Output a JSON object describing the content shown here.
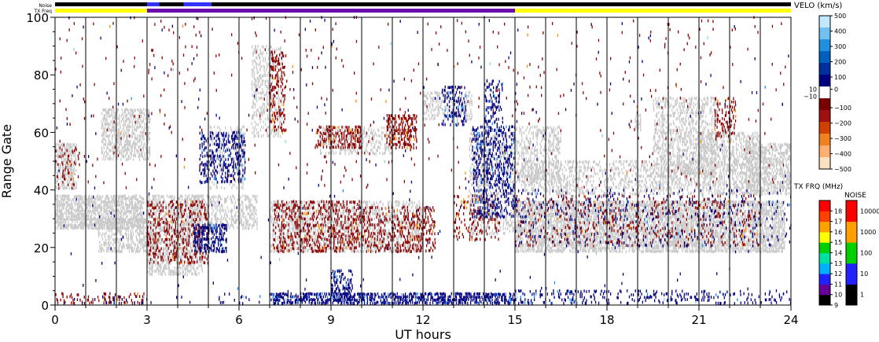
{
  "chart_data": {
    "type": "heatmap",
    "title": "",
    "xlabel": "UT hours",
    "ylabel": "Range Gate",
    "xlim": [
      0,
      24
    ],
    "ylim": [
      0,
      100
    ],
    "x_ticks": [
      0,
      3,
      6,
      9,
      12,
      15,
      18,
      21,
      24
    ],
    "y_ticks": [
      0,
      20,
      40,
      60,
      80,
      100
    ],
    "grid": "vertical lines every hour",
    "top_bars": {
      "noise_label": "Noise",
      "txfreq_label": "TX Freq",
      "noise_segments": [
        {
          "x0": 0,
          "x1": 3.0,
          "color": "#000000"
        },
        {
          "x0": 3.0,
          "x1": 3.4,
          "color": "#3333ff"
        },
        {
          "x0": 3.4,
          "x1": 4.2,
          "color": "#000000"
        },
        {
          "x0": 4.2,
          "x1": 5.1,
          "color": "#3333ff"
        },
        {
          "x0": 5.1,
          "x1": 24.0,
          "color": "#000000"
        }
      ],
      "txfreq_segments": [
        {
          "x0": 0,
          "x1": 3.0,
          "color": "#ffff00"
        },
        {
          "x0": 3.0,
          "x1": 15.0,
          "color": "#6a0dad"
        },
        {
          "x0": 15.0,
          "x1": 24.0,
          "color": "#ffff00"
        }
      ]
    },
    "velocity_colorbar": {
      "label": "VELO (km/s)",
      "ticks_positive": [
        "500",
        "400",
        "300",
        "200",
        "100",
        "0"
      ],
      "ticks_negative": [
        "−100",
        "−200",
        "−300",
        "−400",
        "−500"
      ],
      "zero_labels": [
        "10",
        "−10"
      ],
      "colors": [
        "#ffe0c0",
        "#ffb070",
        "#f08020",
        "#d04000",
        "#a01010",
        "#7a0000",
        "#ffffff",
        "#000080",
        "#0030a0",
        "#0060c0",
        "#2090e0",
        "#70c0f0",
        "#c0e8ff"
      ],
      "vmin": -500,
      "vmax": 500
    },
    "txfreq_colorbar": {
      "label": "TX FRQ (MHz)",
      "ticks": [
        "9",
        "10",
        "11",
        "12",
        "13",
        "14",
        "15",
        "16",
        "17",
        "18"
      ],
      "colors": [
        "#000000",
        "#660099",
        "#2222ff",
        "#00b0ff",
        "#00e0a0",
        "#00d000",
        "#ffff00",
        "#ffa000",
        "#ff4000",
        "#ff0000"
      ]
    },
    "noise_colorbar": {
      "label": "NOISE",
      "ticks": [
        "1",
        "10",
        "100",
        "1000",
        "10000"
      ],
      "colors": [
        "#000000",
        "#2222ff",
        "#00d000",
        "#ffa000",
        "#ff0000"
      ]
    },
    "ground_scatter_color": "#c8c8c8",
    "velocity_scatter_colors": {
      "negative": "#8b0000",
      "positive": "#000080",
      "other": [
        "#ff8c00",
        "#1e90ff",
        "#87ceeb"
      ]
    },
    "regions": [
      {
        "kind": "ground",
        "t0": 0.0,
        "t1": 2.9,
        "g0": 26,
        "g1": 38,
        "density": 0.75
      },
      {
        "kind": "ground",
        "t0": 0.0,
        "t1": 0.7,
        "g0": 40,
        "g1": 56,
        "density": 0.6
      },
      {
        "kind": "ground",
        "t0": 1.4,
        "t1": 3.0,
        "g0": 18,
        "g1": 30,
        "density": 0.5
      },
      {
        "kind": "ground",
        "t0": 1.5,
        "t1": 3.1,
        "g0": 50,
        "g1": 68,
        "density": 0.55
      },
      {
        "kind": "ground",
        "t0": 3.0,
        "t1": 4.8,
        "g0": 10,
        "g1": 38,
        "density": 0.55
      },
      {
        "kind": "ground",
        "t0": 4.4,
        "t1": 6.6,
        "g0": 26,
        "g1": 38,
        "density": 0.45
      },
      {
        "kind": "ground",
        "t0": 6.4,
        "t1": 7.4,
        "g0": 58,
        "g1": 90,
        "density": 0.35
      },
      {
        "kind": "ground",
        "t0": 5.0,
        "t1": 6.2,
        "g0": 40,
        "g1": 62,
        "density": 0.25
      },
      {
        "kind": "ground",
        "t0": 7.0,
        "t1": 12.0,
        "g0": 18,
        "g1": 36,
        "density": 0.45
      },
      {
        "kind": "ground",
        "t0": 8.6,
        "t1": 11.0,
        "g0": 52,
        "g1": 62,
        "density": 0.35
      },
      {
        "kind": "ground",
        "t0": 12.0,
        "t1": 13.6,
        "g0": 64,
        "g1": 74,
        "density": 0.4
      },
      {
        "kind": "ground",
        "t0": 13.5,
        "t1": 15.0,
        "g0": 24,
        "g1": 60,
        "density": 0.35
      },
      {
        "kind": "ground",
        "t0": 15.0,
        "t1": 23.8,
        "g0": 18,
        "g1": 36,
        "density": 0.7
      },
      {
        "kind": "ground",
        "t0": 15.0,
        "t1": 16.5,
        "g0": 42,
        "g1": 62,
        "density": 0.4
      },
      {
        "kind": "ground",
        "t0": 15.2,
        "t1": 21.0,
        "g0": 38,
        "g1": 50,
        "density": 0.35
      },
      {
        "kind": "ground",
        "t0": 19.5,
        "t1": 21.6,
        "g0": 44,
        "g1": 72,
        "density": 0.45
      },
      {
        "kind": "ground",
        "t0": 21.0,
        "t1": 23.0,
        "g0": 38,
        "g1": 60,
        "density": 0.45
      },
      {
        "kind": "ground",
        "t0": 22.5,
        "t1": 24.0,
        "g0": 38,
        "g1": 56,
        "density": 0.6
      },
      {
        "kind": "ground",
        "t0": 18.9,
        "t1": 19.1,
        "g0": 60,
        "g1": 66,
        "density": 0.6
      },
      {
        "kind": "neg",
        "t0": 3.0,
        "t1": 5.0,
        "g0": 14,
        "g1": 36,
        "density": 0.28
      },
      {
        "kind": "neg",
        "t0": 7.1,
        "t1": 10.0,
        "g0": 18,
        "g1": 36,
        "density": 0.32
      },
      {
        "kind": "neg",
        "t0": 10.0,
        "t1": 12.4,
        "g0": 18,
        "g1": 34,
        "density": 0.3
      },
      {
        "kind": "neg",
        "t0": 8.5,
        "t1": 10.0,
        "g0": 54,
        "g1": 62,
        "density": 0.4
      },
      {
        "kind": "neg",
        "t0": 10.8,
        "t1": 11.8,
        "g0": 54,
        "g1": 66,
        "density": 0.45
      },
      {
        "kind": "neg",
        "t0": 7.0,
        "t1": 7.5,
        "g0": 60,
        "g1": 88,
        "density": 0.3
      },
      {
        "kind": "neg",
        "t0": 15.0,
        "t1": 23.0,
        "g0": 20,
        "g1": 38,
        "density": 0.12
      },
      {
        "kind": "neg",
        "t0": 21.5,
        "t1": 22.2,
        "g0": 58,
        "g1": 72,
        "density": 0.3
      },
      {
        "kind": "neg",
        "t0": 0.0,
        "t1": 0.8,
        "g0": 40,
        "g1": 56,
        "density": 0.15
      },
      {
        "kind": "neg",
        "t0": 13.0,
        "t1": 14.5,
        "g0": 22,
        "g1": 38,
        "density": 0.18
      },
      {
        "kind": "neg",
        "t0": 0.0,
        "t1": 24.0,
        "g0": 40,
        "g1": 100,
        "density": 0.012
      },
      {
        "kind": "pos",
        "t0": 4.5,
        "t1": 5.6,
        "g0": 18,
        "g1": 28,
        "density": 0.55
      },
      {
        "kind": "pos",
        "t0": 4.7,
        "t1": 6.2,
        "g0": 42,
        "g1": 60,
        "density": 0.35
      },
      {
        "kind": "pos",
        "t0": 13.6,
        "t1": 15.0,
        "g0": 30,
        "g1": 62,
        "density": 0.35
      },
      {
        "kind": "pos",
        "t0": 7.0,
        "t1": 15.0,
        "g0": 0,
        "g1": 4,
        "density": 0.6
      },
      {
        "kind": "pos",
        "t0": 15.0,
        "t1": 24.0,
        "g0": 0,
        "g1": 5,
        "density": 0.18
      },
      {
        "kind": "pos",
        "t0": 0.0,
        "t1": 7.0,
        "g0": 0,
        "g1": 3,
        "density": 0.05
      },
      {
        "kind": "pos",
        "t0": 9.0,
        "t1": 9.7,
        "g0": 0,
        "g1": 12,
        "density": 0.4
      },
      {
        "kind": "pos",
        "t0": 15.0,
        "t1": 24.0,
        "g0": 20,
        "g1": 40,
        "density": 0.07
      },
      {
        "kind": "pos",
        "t0": 12.6,
        "t1": 13.4,
        "g0": 62,
        "g1": 76,
        "density": 0.25
      },
      {
        "kind": "pos",
        "t0": 14.0,
        "t1": 14.6,
        "g0": 60,
        "g1": 78,
        "density": 0.25
      },
      {
        "kind": "pos",
        "t0": 0.0,
        "t1": 24.0,
        "g0": 0,
        "g1": 100,
        "density": 0.004
      },
      {
        "kind": "neg",
        "t0": 0.0,
        "t1": 3.0,
        "g0": 0,
        "g1": 4,
        "density": 0.25
      }
    ]
  }
}
